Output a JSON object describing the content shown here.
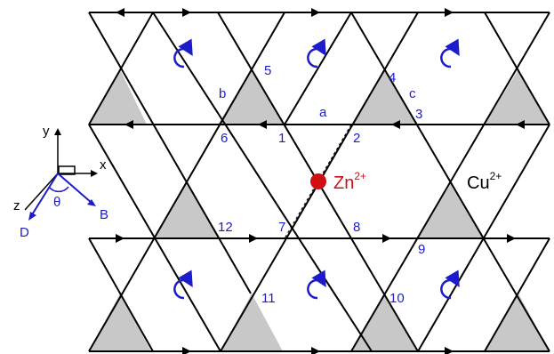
{
  "colors": {
    "line": "#000000",
    "triangle_fill": "#c8c8c8",
    "label": "#1c1ccc",
    "zn": "#d01010",
    "axes_vector": "#1c1ccc"
  },
  "ions": {
    "zn": {
      "symbol": "Zn",
      "charge": "2+"
    },
    "cu": {
      "symbol": "Cu",
      "charge": "2+"
    }
  },
  "site_labels": [
    "1",
    "2",
    "3",
    "4",
    "5",
    "6",
    "7",
    "8",
    "9",
    "10",
    "11",
    "12"
  ],
  "bond_labels": {
    "a": "a",
    "b": "b",
    "c": "c"
  },
  "axes": {
    "x": "x",
    "y": "y",
    "z": "z",
    "B": "B",
    "D": "D",
    "theta": "θ"
  },
  "icons": {
    "rotation": "curved-arrow-icon",
    "flow": "arrowhead-icon"
  }
}
